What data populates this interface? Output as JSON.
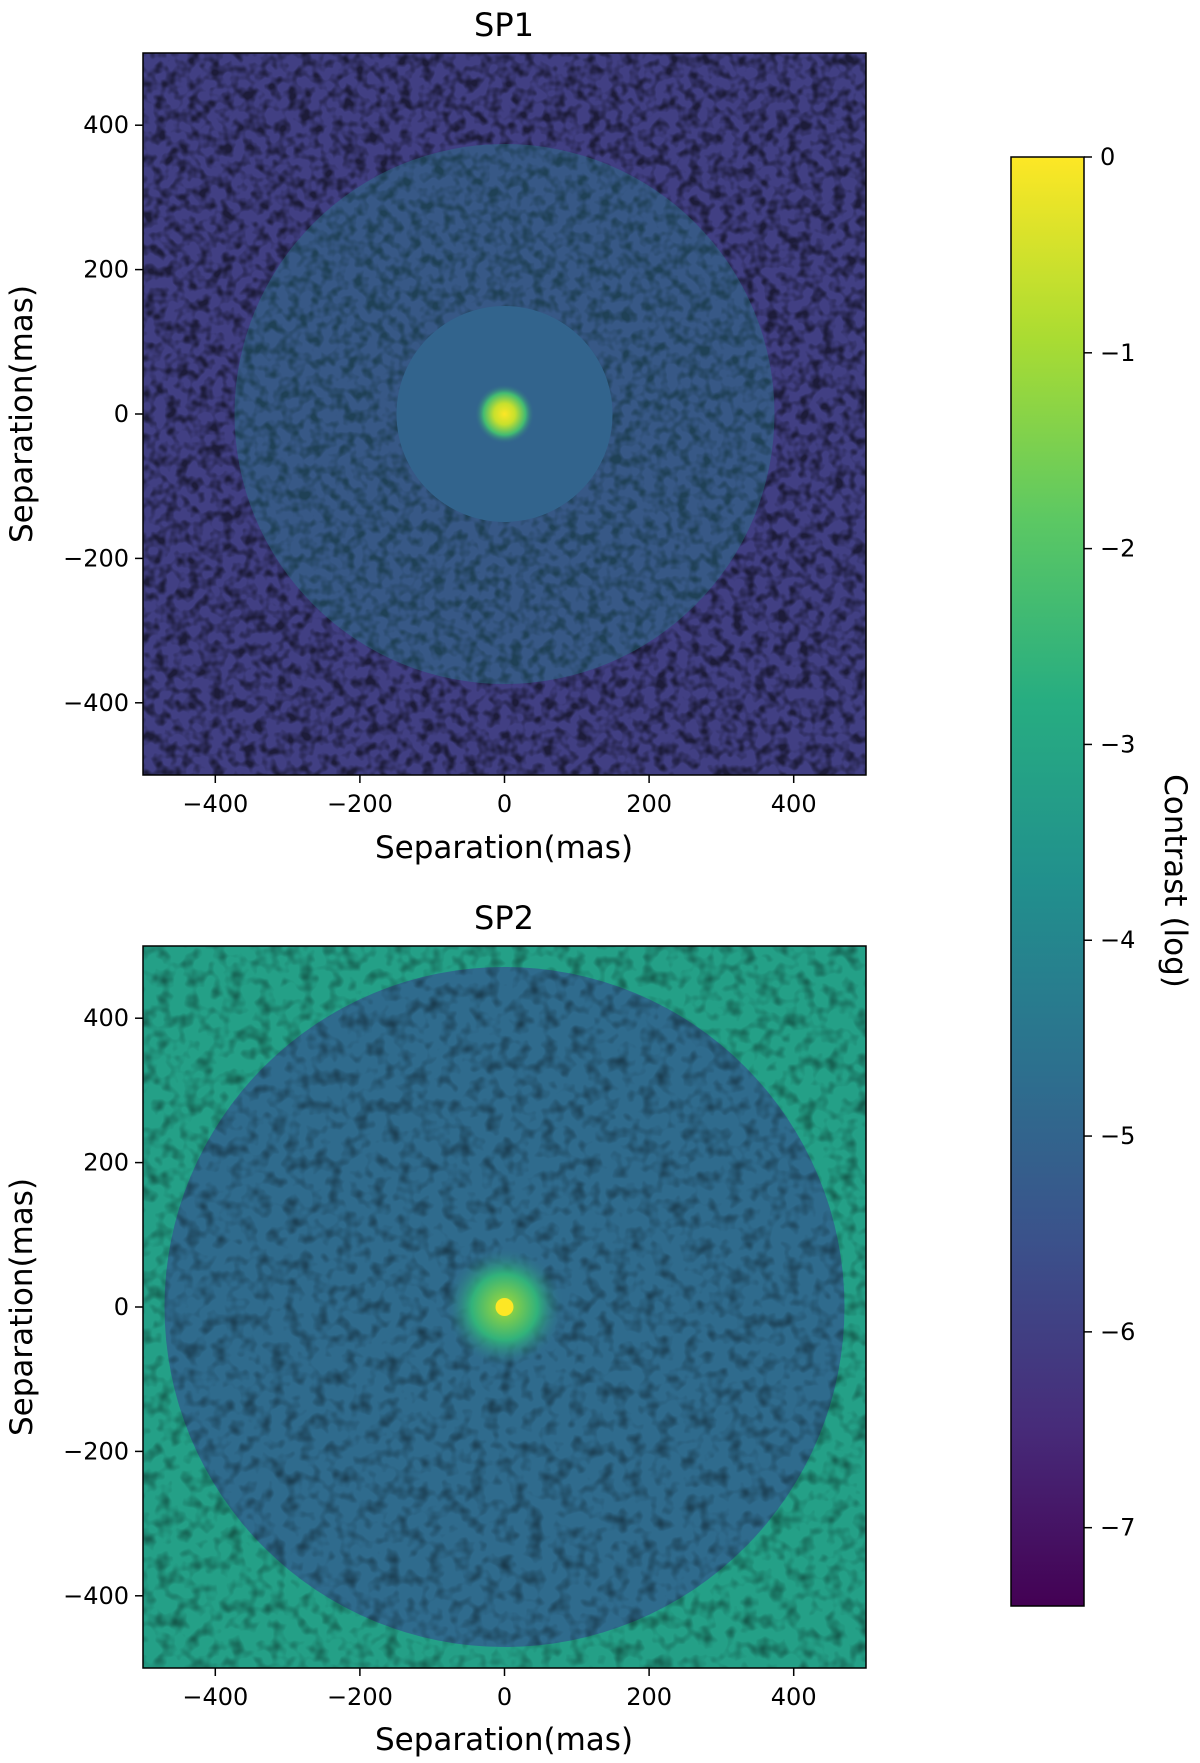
{
  "colormap": {
    "name": "viridis",
    "stops": [
      "#440154",
      "#472c7a",
      "#3b518b",
      "#2c718e",
      "#21908d",
      "#27ad81",
      "#5cc863",
      "#aadc32",
      "#fde725"
    ]
  },
  "colorbar": {
    "label": "Contrast (log)",
    "range": [
      -7.4,
      0
    ],
    "ticks": [
      0,
      -1,
      -2,
      -3,
      -4,
      -5,
      -6,
      -7
    ],
    "tick_labels": [
      "0",
      "−1",
      "−2",
      "−3",
      "−4",
      "−5",
      "−6",
      "−7"
    ]
  },
  "chart_data": [
    {
      "type": "heatmap",
      "title": "SP1",
      "xlabel": "Separation(mas)",
      "ylabel": "Separation(mas)",
      "xlim": [
        -500,
        500
      ],
      "ylim": [
        -500,
        500
      ],
      "xticks": [
        -400,
        -200,
        0,
        200,
        400
      ],
      "yticks": [
        400,
        200,
        0,
        -200,
        -400
      ],
      "xtick_labels": [
        "−400",
        "−200",
        "0",
        "200",
        "400"
      ],
      "ytick_labels": [
        "400",
        "200",
        "0",
        "−200",
        "−400"
      ],
      "peak": {
        "x": 0,
        "y": 0,
        "value": 0
      },
      "dark_hole": {
        "shape": "circle",
        "inner_radius_mas": 25,
        "outer_radius_mas": 150,
        "level": -5.0
      },
      "halo_level": -4.0,
      "outer_speckle_level": -6.0
    },
    {
      "type": "heatmap",
      "title": "SP2",
      "xlabel": "Separation(mas)",
      "ylabel": "Separation(mas)",
      "xlim": [
        -500,
        500
      ],
      "ylim": [
        -500,
        500
      ],
      "xticks": [
        -400,
        -200,
        0,
        200,
        400
      ],
      "yticks": [
        400,
        200,
        0,
        -200,
        -400
      ],
      "xtick_labels": [
        "−400",
        "−200",
        "0",
        "200",
        "400"
      ],
      "ytick_labels": [
        "400",
        "200",
        "0",
        "−200",
        "−400"
      ],
      "peak": {
        "x": 0,
        "y": 0,
        "value": 0
      },
      "inner_core_radius_mas": 80,
      "dark_hole": {
        "shape": "circle",
        "inner_radius_mas": 80,
        "outer_radius_mas": 470,
        "level": -4.8
      },
      "corner_level": -3.2
    }
  ]
}
